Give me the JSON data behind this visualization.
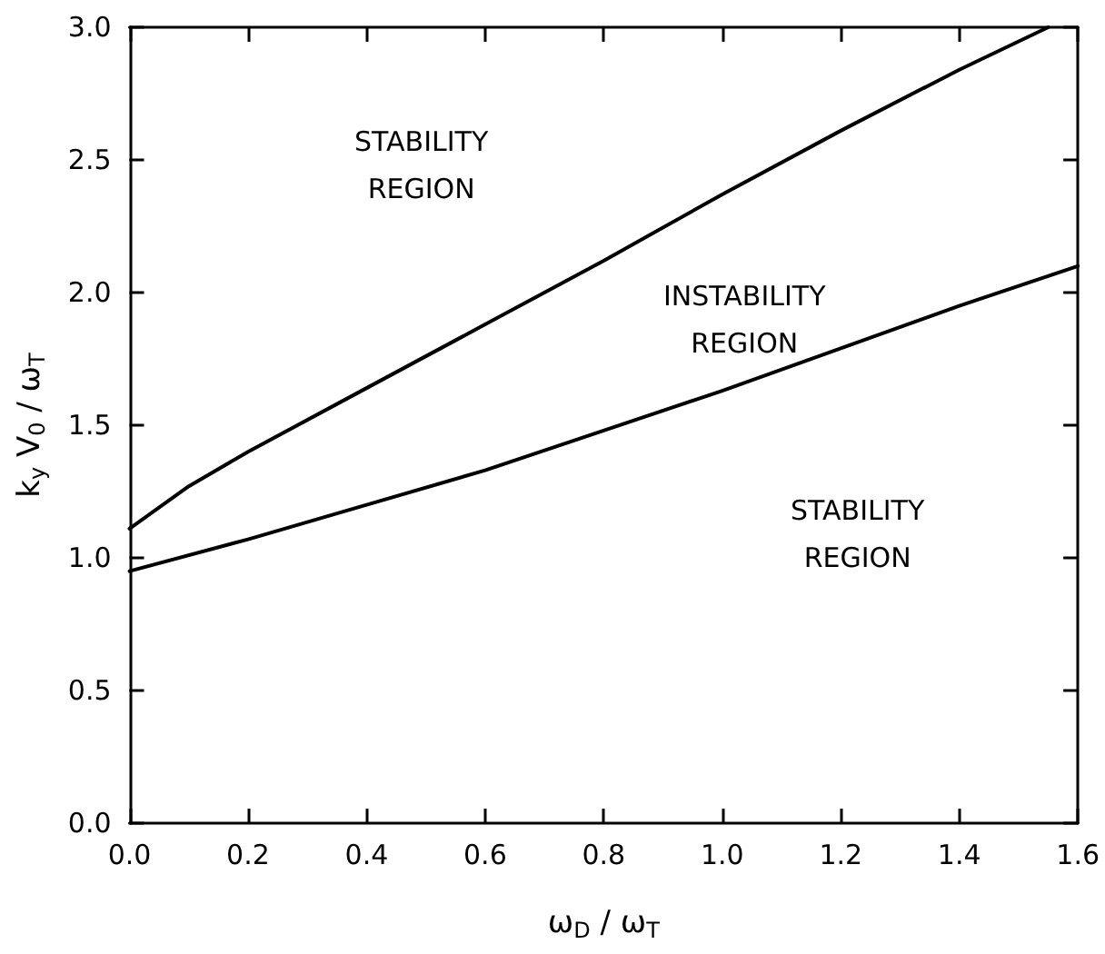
{
  "chart_data": {
    "type": "line",
    "xlabel": "ω$_{D}$ / ω$_{T}$",
    "ylabel": "k$_{y}$ V$_{0}$ / ω$_{T}$",
    "xlim": [
      0,
      1.6
    ],
    "xticks": [
      {
        "value": 0,
        "label": "0.0"
      },
      0.2,
      0.4,
      0.6,
      0.8,
      {
        "value": 1,
        "label": "1.0"
      },
      1.2,
      1.4,
      1.6
    ],
    "ylim": [
      0,
      3
    ],
    "yticks": [
      {
        "value": 0,
        "label": "0.0"
      },
      0.5,
      {
        "value": 1,
        "label": "1.0"
      },
      1.5,
      {
        "value": 2,
        "label": "2.0"
      },
      2.5,
      {
        "value": 3,
        "label": "3.0"
      }
    ],
    "grid": false,
    "legend": false,
    "marker": "none",
    "line_style": "solid",
    "annotations": [
      "STABILITY\nREGION",
      "INSTABILITY\nREGION",
      "STABILITY\nREGION"
    ],
    "series": [
      {
        "color": "#000000",
        "x": [
          0,
          0.1,
          0.2,
          0.4,
          0.6,
          0.8,
          1.0,
          1.2,
          1.4,
          1.55
        ],
        "values": [
          1.11,
          1.27,
          1.4,
          1.64,
          1.88,
          2.12,
          2.37,
          2.61,
          2.84,
          3.0
        ]
      },
      {
        "color": "#000000",
        "x": [
          0,
          0.2,
          0.4,
          0.6,
          0.8,
          1.0,
          1.2,
          1.4,
          1.6
        ],
        "values": [
          0.95,
          1.07,
          1.2,
          1.33,
          1.48,
          1.63,
          1.79,
          1.95,
          2.1
        ]
      }
    ]
  }
}
